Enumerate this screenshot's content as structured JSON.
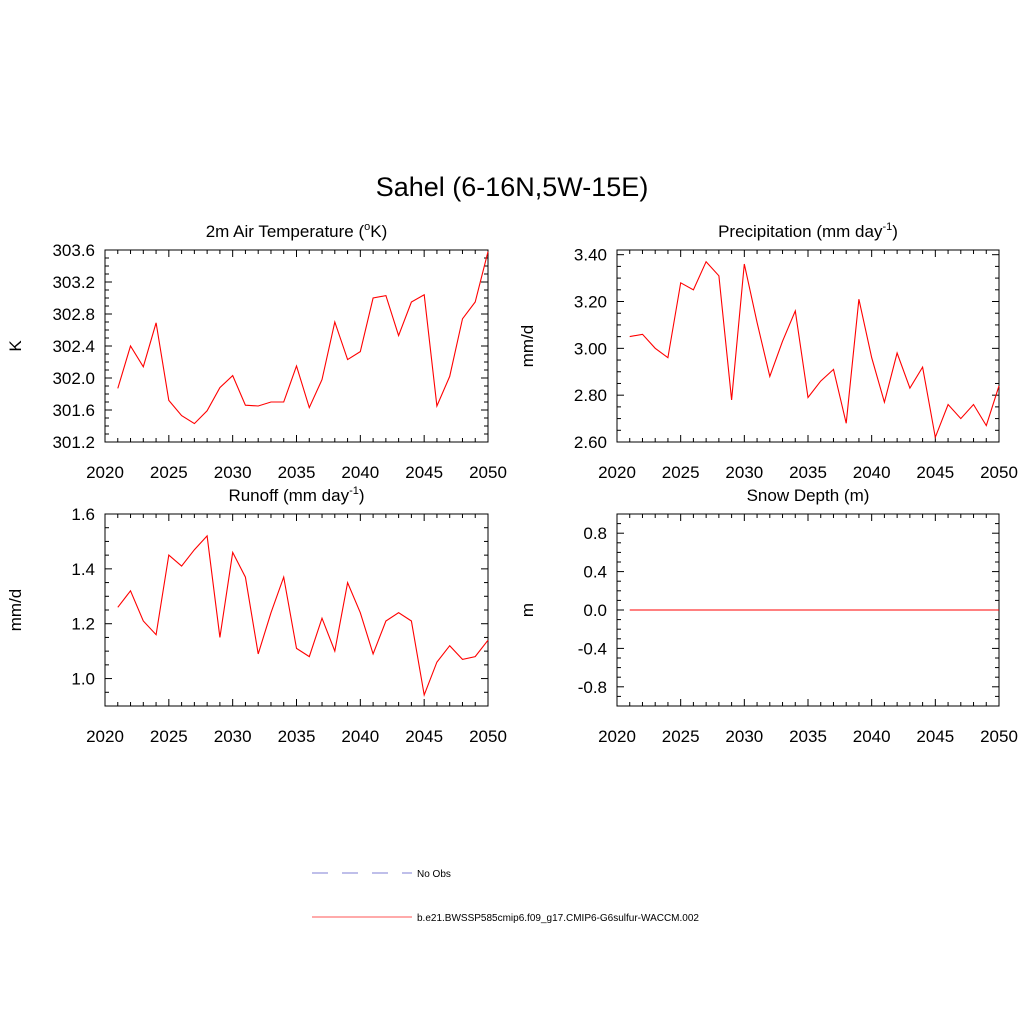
{
  "figure_title": "Sahel (6-16N,5W-15E)",
  "legend": {
    "entries": [
      {
        "label": "No Obs",
        "color": "#9999dd",
        "style": "dashed"
      },
      {
        "label": "b.e21.BWSSP585cmip6.f09_g17.CMIP6-G6sulfur-WACCM.002",
        "color": "#ff7777",
        "style": "solid"
      }
    ]
  },
  "chart_data": [
    {
      "type": "line",
      "title": "2m Air Temperature (",
      "title_sup": "o",
      "title_after": "K)",
      "title_end": "",
      "ylabel": "K",
      "xlim": [
        2020,
        2050
      ],
      "ylim": [
        301.2,
        303.6
      ],
      "xticks": [
        2020,
        2025,
        2030,
        2035,
        2040,
        2045,
        2050
      ],
      "yticks": [
        301.2,
        301.6,
        302.0,
        302.4,
        302.8,
        303.2,
        303.6
      ],
      "ytick_labels": [
        "301.2",
        "301.6",
        "302.0",
        "302.4",
        "302.8",
        "303.2",
        "303.6"
      ],
      "series": [
        {
          "color": "#ff0000",
          "x": [
            2021,
            2022,
            2023,
            2024,
            2025,
            2026,
            2027,
            2028,
            2029,
            2030,
            2031,
            2032,
            2033,
            2034,
            2035,
            2036,
            2037,
            2038,
            2039,
            2040,
            2041,
            2042,
            2043,
            2044,
            2045,
            2046,
            2047,
            2048,
            2049,
            2050
          ],
          "values": [
            301.87,
            302.4,
            302.14,
            302.69,
            301.72,
            301.53,
            301.43,
            301.59,
            301.88,
            302.03,
            301.66,
            301.65,
            301.7,
            301.7,
            302.15,
            301.63,
            301.98,
            302.7,
            302.23,
            302.33,
            303.0,
            303.03,
            302.53,
            302.95,
            303.04,
            301.65,
            302.02,
            302.74,
            302.95,
            303.58
          ]
        }
      ]
    },
    {
      "type": "line",
      "title": "Precipitation (mm day",
      "title_sup": "-1",
      "title_after": ")",
      "title_end": "",
      "ylabel": "mm/d",
      "xlim": [
        2020,
        2050
      ],
      "ylim": [
        2.6,
        3.42
      ],
      "xticks": [
        2020,
        2025,
        2030,
        2035,
        2040,
        2045,
        2050
      ],
      "yticks": [
        2.6,
        2.8,
        3.0,
        3.2,
        3.4
      ],
      "ytick_labels": [
        "2.60",
        "2.80",
        "3.00",
        "3.20",
        "3.40"
      ],
      "series": [
        {
          "color": "#ff0000",
          "x": [
            2021,
            2022,
            2023,
            2024,
            2025,
            2026,
            2027,
            2028,
            2029,
            2030,
            2031,
            2032,
            2033,
            2034,
            2035,
            2036,
            2037,
            2038,
            2039,
            2040,
            2041,
            2042,
            2043,
            2044,
            2045,
            2046,
            2047,
            2048,
            2049,
            2050
          ],
          "values": [
            3.05,
            3.06,
            3.0,
            2.96,
            3.28,
            3.25,
            3.37,
            3.31,
            2.78,
            3.36,
            3.11,
            2.88,
            3.03,
            3.16,
            2.79,
            2.86,
            2.91,
            2.68,
            3.21,
            2.96,
            2.77,
            2.98,
            2.83,
            2.92,
            2.62,
            2.76,
            2.7,
            2.76,
            2.67,
            2.84
          ]
        }
      ]
    },
    {
      "type": "line",
      "title": "Runoff (mm day",
      "title_sup": "-1",
      "title_after": ")",
      "title_end": "",
      "ylabel": "mm/d",
      "xlim": [
        2020,
        2050
      ],
      "ylim": [
        0.9,
        1.6
      ],
      "xticks": [
        2020,
        2025,
        2030,
        2035,
        2040,
        2045,
        2050
      ],
      "yticks": [
        1.0,
        1.2,
        1.4,
        1.6
      ],
      "ytick_labels": [
        "1.0",
        "1.2",
        "1.4",
        "1.6"
      ],
      "series": [
        {
          "color": "#ff0000",
          "x": [
            2021,
            2022,
            2023,
            2024,
            2025,
            2026,
            2027,
            2028,
            2029,
            2030,
            2031,
            2032,
            2033,
            2034,
            2035,
            2036,
            2037,
            2038,
            2039,
            2040,
            2041,
            2042,
            2043,
            2044,
            2045,
            2046,
            2047,
            2048,
            2049,
            2050
          ],
          "values": [
            1.26,
            1.32,
            1.21,
            1.16,
            1.45,
            1.41,
            1.47,
            1.52,
            1.15,
            1.46,
            1.37,
            1.09,
            1.24,
            1.37,
            1.11,
            1.08,
            1.22,
            1.1,
            1.35,
            1.24,
            1.09,
            1.21,
            1.24,
            1.21,
            0.94,
            1.06,
            1.12,
            1.07,
            1.08,
            1.14
          ]
        }
      ]
    },
    {
      "type": "line",
      "title": "Snow Depth (m)",
      "title_sup": "",
      "title_after": "",
      "title_end": "",
      "ylabel": "m",
      "xlim": [
        2020,
        2050
      ],
      "ylim": [
        -1.0,
        1.0
      ],
      "xticks": [
        2020,
        2025,
        2030,
        2035,
        2040,
        2045,
        2050
      ],
      "yticks": [
        -0.8,
        -0.4,
        0.0,
        0.4,
        0.8
      ],
      "ytick_labels": [
        "-0.8",
        "-0.4",
        "0.0",
        "0.4",
        "0.8"
      ],
      "series": [
        {
          "color": "#ff0000",
          "x": [
            2021,
            2050
          ],
          "values": [
            0.0,
            0.0
          ]
        }
      ]
    }
  ]
}
